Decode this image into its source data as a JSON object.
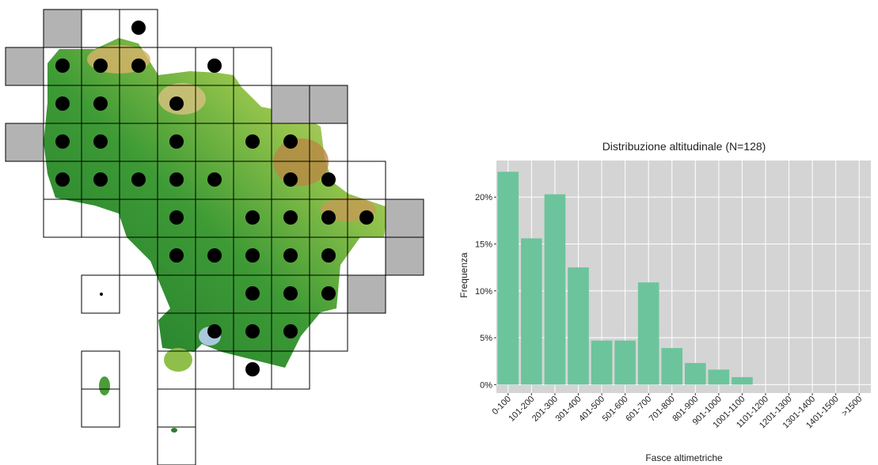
{
  "chart_data": {
    "type": "bar",
    "title": "Distribuzione altitudinale (N=128)",
    "x_label": "Fasce altimetriche",
    "y_label": "Frequenza",
    "categories": [
      "0-100",
      "101-200",
      "201-300",
      "301-400",
      "401-500",
      "501-600",
      "601-700",
      "701-800",
      "801-900",
      "901-1000",
      "1001-1100",
      "1101-1200",
      "1201-1300",
      "1301-1400",
      "1401-1500",
      ">1500"
    ],
    "values": [
      22.7,
      15.6,
      20.3,
      12.5,
      4.7,
      4.7,
      10.9,
      3.9,
      2.3,
      1.6,
      0.8,
      0,
      0,
      0,
      0,
      0
    ],
    "color": "#6cc49c",
    "ylim": [
      -0.9,
      23.9
    ],
    "yticks": [
      {
        "value": 0,
        "label": "0%"
      },
      {
        "value": 5,
        "label": "5%"
      },
      {
        "value": 10,
        "label": "10%"
      },
      {
        "value": 15,
        "label": "15%"
      },
      {
        "value": 20,
        "label": "20%"
      }
    ],
    "grid": true
  }
}
